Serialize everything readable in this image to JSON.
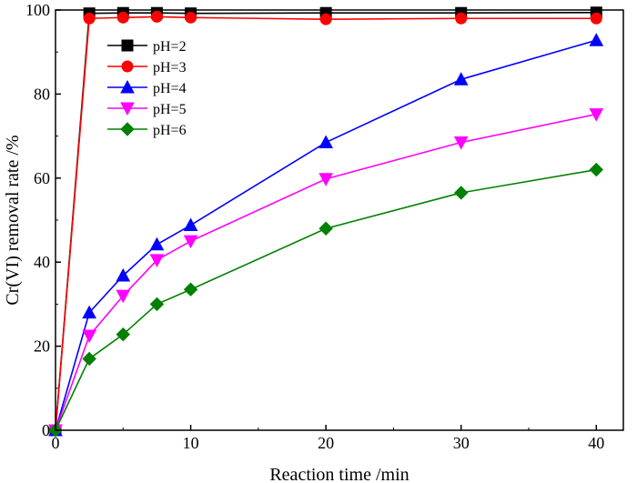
{
  "chart_data": {
    "type": "line",
    "title": "",
    "xlabel": "Reaction time /min",
    "ylabel": "Cr(VI) removal rate /%",
    "xlim": [
      0,
      42
    ],
    "ylim": [
      0,
      100
    ],
    "xticks": [
      "0",
      "10",
      "20",
      "30",
      "40"
    ],
    "yticks": [
      "0",
      "20",
      "40",
      "60",
      "80",
      "100"
    ],
    "x": [
      0,
      2.5,
      5,
      7.5,
      10,
      20,
      30,
      40
    ],
    "legend_position": "top-left",
    "series": [
      {
        "name": "pH=2",
        "color": "#000000",
        "marker": "square",
        "values": [
          0,
          99.2,
          99.3,
          99.3,
          99.2,
          99.3,
          99.3,
          99.4
        ]
      },
      {
        "name": "pH=3",
        "color": "#ff0000",
        "marker": "circle",
        "values": [
          0,
          98.0,
          98.2,
          98.4,
          98.2,
          97.8,
          98.0,
          98.0
        ]
      },
      {
        "name": "pH=4",
        "color": "#0000ff",
        "marker": "triangle-up",
        "values": [
          0,
          28.0,
          36.8,
          44.2,
          48.8,
          68.5,
          83.5,
          92.8
        ]
      },
      {
        "name": "pH=5",
        "color": "#ff00ff",
        "marker": "triangle-down",
        "values": [
          0,
          22.5,
          32.0,
          40.5,
          45.0,
          59.8,
          68.5,
          75.2
        ]
      },
      {
        "name": "pH=6",
        "color": "#008000",
        "marker": "diamond",
        "values": [
          0,
          17.0,
          22.8,
          30.0,
          33.5,
          48.0,
          56.5,
          62.0
        ]
      }
    ]
  }
}
